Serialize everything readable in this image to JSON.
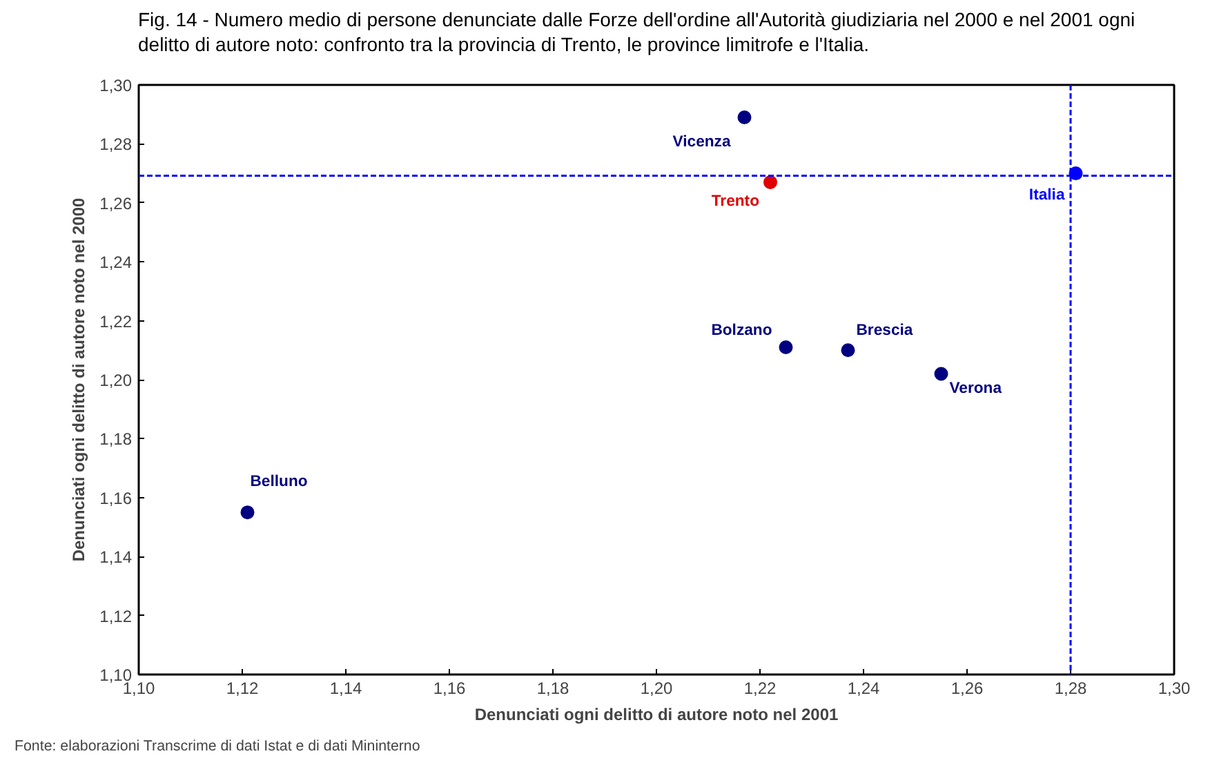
{
  "chart_data": {
    "type": "scatter",
    "title": "Fig. 14 - Numero medio di persone denunciate dalle Forze dell'ordine all'Autorità giudiziaria nel 2000 e nel 2001 ogni delitto di autore noto: confronto tra la provincia di Trento, le province limitrofe e l'Italia.",
    "xlabel": "Denunciati ogni delitto di autore noto nel 2001",
    "ylabel": "Denunciati ogni delitto di autore noto nel 2000",
    "annotations": [
      "Fonte: elaborazioni Transcrime di dati Istat e di dati Mininterno"
    ],
    "series": [
      {
        "name": "Vicenza",
        "color": "#000080",
        "x": [
          1.217
        ],
        "values": [
          1.289
        ]
      },
      {
        "name": "Trento",
        "color": "#e00000",
        "x": [
          1.222
        ],
        "values": [
          1.267
        ]
      },
      {
        "name": "Italia",
        "color": "#0000ff",
        "x": [
          1.281
        ],
        "values": [
          1.27
        ]
      },
      {
        "name": "Bolzano",
        "color": "#000080",
        "x": [
          1.225
        ],
        "values": [
          1.211
        ]
      },
      {
        "name": "Brescia",
        "color": "#000080",
        "x": [
          1.237
        ],
        "values": [
          1.21
        ]
      },
      {
        "name": "Verona",
        "color": "#000080",
        "x": [
          1.255
        ],
        "values": [
          1.202
        ]
      },
      {
        "name": "Belluno",
        "color": "#000080",
        "x": [
          1.121
        ],
        "values": [
          1.155
        ]
      }
    ],
    "xlim": [
      1.1,
      1.3
    ],
    "ylim": [
      1.1,
      1.3
    ],
    "xticks": [
      {
        "value": 1.1,
        "label": "1,10"
      },
      {
        "value": 1.12,
        "label": "1,12"
      },
      {
        "value": 1.14,
        "label": "1,14"
      },
      {
        "value": 1.16,
        "label": "1,16"
      },
      {
        "value": 1.18,
        "label": "1,18"
      },
      {
        "value": 1.2,
        "label": "1,20"
      },
      {
        "value": 1.22,
        "label": "1,22"
      },
      {
        "value": 1.24,
        "label": "1,24"
      },
      {
        "value": 1.26,
        "label": "1,26"
      },
      {
        "value": 1.28,
        "label": "1,28"
      },
      {
        "value": 1.3,
        "label": "1,30"
      }
    ],
    "yticks": [
      {
        "value": 1.1,
        "label": "1,10"
      },
      {
        "value": 1.12,
        "label": "1,12"
      },
      {
        "value": 1.14,
        "label": "1,14"
      },
      {
        "value": 1.16,
        "label": "1,16"
      },
      {
        "value": 1.18,
        "label": "1,18"
      },
      {
        "value": 1.2,
        "label": "1,20"
      },
      {
        "value": 1.22,
        "label": "1,22"
      },
      {
        "value": 1.24,
        "label": "1,24"
      },
      {
        "value": 1.26,
        "label": "1,26"
      },
      {
        "value": 1.28,
        "label": "1,28"
      },
      {
        "value": 1.3,
        "label": "1,30"
      }
    ],
    "ref_lines": [
      {
        "axis": "y",
        "value": 1.2692,
        "color": "#0000ff",
        "line_style": "dashed"
      },
      {
        "axis": "x",
        "value": 1.28,
        "color": "#0000ff",
        "line_style": "dashed"
      }
    ],
    "grid": false,
    "marker": "circle"
  }
}
